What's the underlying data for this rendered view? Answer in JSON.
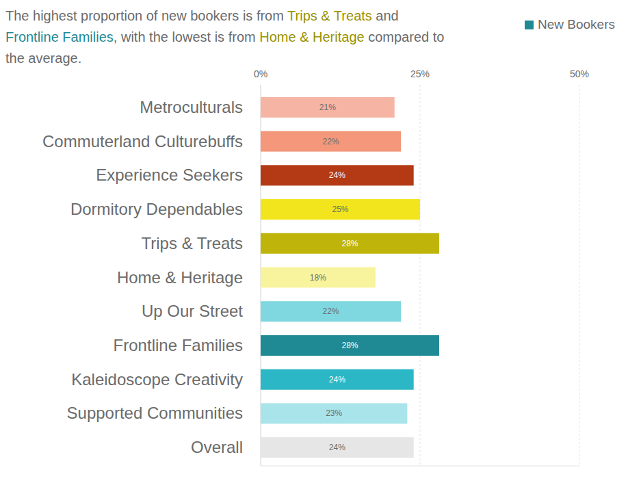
{
  "chart_data": {
    "type": "bar",
    "orientation": "horizontal",
    "title": [
      {
        "text": "The highest proportion of new bookers is from ",
        "color": "#6b6b6b"
      },
      {
        "text": "Trips & Treats",
        "color": "#9a9200"
      },
      {
        "text": " and ",
        "color": "#6b6b6b"
      },
      {
        "text": "Frontline Families,",
        "color": "#1f8a94"
      },
      {
        "text": " with the lowest is from ",
        "color": "#6b6b6b"
      },
      {
        "text": "Home & Heritage",
        "color": "#9a9200"
      },
      {
        "text": " compared to the average.",
        "color": "#6b6b6b"
      }
    ],
    "categories": [
      "Metroculturals",
      "Commuterland Culturebuffs",
      "Experience Seekers",
      "Dormitory Dependables",
      "Trips & Treats",
      "Home & Heritage",
      "Up Our Street",
      "Frontline Families",
      "Kaleidoscope Creativity",
      "Supported Communities",
      "Overall"
    ],
    "series": [
      {
        "name": "New Bookers",
        "color": "#1f8a94",
        "values": [
          21,
          22,
          24,
          25,
          28,
          18,
          22,
          28,
          24,
          23,
          24
        ],
        "value_labels": [
          "21%",
          "22%",
          "24%",
          "25%",
          "28%",
          "18%",
          "22%",
          "28%",
          "24%",
          "23%",
          "24%"
        ],
        "colors": [
          "#f6b5a4",
          "#f4977a",
          "#b33a15",
          "#f2e51e",
          "#bfb50a",
          "#f8f49d",
          "#7fd8e0",
          "#1f8a94",
          "#2bb7c5",
          "#a9e4ea",
          "#e6e6e6"
        ]
      }
    ],
    "xlim": [
      0,
      50
    ],
    "xticks": [
      {
        "value": 0,
        "label": "0%"
      },
      {
        "value": 25,
        "label": "25%"
      },
      {
        "value": 50,
        "label": "50%"
      }
    ],
    "grid": true,
    "data_labels": true,
    "legend": "top-right"
  }
}
